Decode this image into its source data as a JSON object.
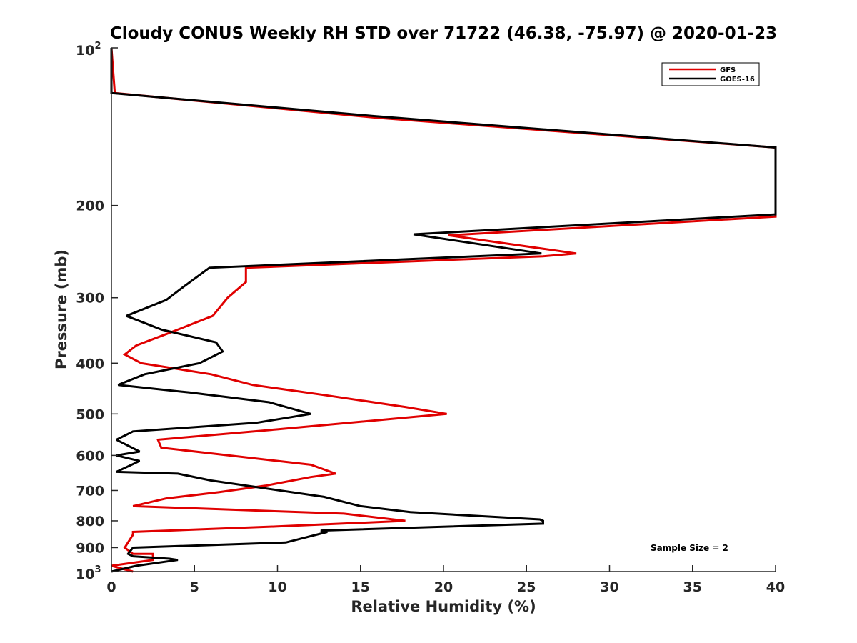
{
  "chart_data": {
    "type": "line",
    "title": "Cloudy CONUS Weekly RH STD over 71722 (46.38, -75.97) @ 2020-01-23",
    "xlabel": "Relative Humidity (%)",
    "ylabel": "Pressure (mb)",
    "xlim": [
      0,
      40
    ],
    "ylim": [
      100,
      1000
    ],
    "yscale": "log",
    "yreversed": true,
    "x_ticks": [
      0,
      5,
      10,
      15,
      20,
      25,
      30,
      35,
      40
    ],
    "x_tick_labels": [
      "0",
      "5",
      "10",
      "15",
      "20",
      "25",
      "30",
      "35",
      "40"
    ],
    "y_ticks": [
      100,
      200,
      300,
      400,
      500,
      600,
      700,
      800,
      900,
      1000
    ],
    "y_tick_labels": [
      "",
      "200",
      "300",
      "400",
      "500",
      "600",
      "700",
      "800",
      "900",
      ""
    ],
    "y_tick_base": "10",
    "y_tick_exp_top": "2",
    "y_tick_exp_bottom": "3",
    "grid": false,
    "legend_position": "top-right",
    "annotation": "Sample Size = 2",
    "series": [
      {
        "name": "GFS",
        "color": "#e00000",
        "points": [
          [
            1.3,
            1000
          ],
          [
            0.0,
            975
          ],
          [
            2.5,
            950
          ],
          [
            2.5,
            925
          ],
          [
            1.3,
            925
          ],
          [
            0.8,
            900
          ],
          [
            1.3,
            850
          ],
          [
            1.3,
            840
          ],
          [
            10.0,
            820
          ],
          [
            17.7,
            800
          ],
          [
            14.0,
            775
          ],
          [
            1.3,
            750
          ],
          [
            3.3,
            725
          ],
          [
            6.5,
            705
          ],
          [
            9.3,
            685
          ],
          [
            12.0,
            660
          ],
          [
            13.5,
            650
          ],
          [
            12.0,
            625
          ],
          [
            3.0,
            580
          ],
          [
            2.8,
            560
          ],
          [
            10.0,
            535
          ],
          [
            20.2,
            500
          ],
          [
            17.7,
            485
          ],
          [
            12.8,
            460
          ],
          [
            8.5,
            440
          ],
          [
            6.0,
            420
          ],
          [
            1.8,
            400
          ],
          [
            0.8,
            385
          ],
          [
            1.5,
            370
          ],
          [
            3.5,
            350
          ],
          [
            6.1,
            325
          ],
          [
            7.0,
            300
          ],
          [
            8.1,
            280
          ],
          [
            8.1,
            263
          ],
          [
            26.0,
            250
          ],
          [
            28.0,
            247
          ],
          [
            20.3,
            228
          ],
          [
            40.0,
            210
          ],
          [
            40.0,
            155
          ],
          [
            16.0,
            136
          ],
          [
            0.2,
            122
          ],
          [
            0.0,
            100
          ]
        ]
      },
      {
        "name": "GOES-16",
        "color": "#000000",
        "points": [
          [
            0.0,
            1000
          ],
          [
            1.5,
            975
          ],
          [
            4.0,
            950
          ],
          [
            3.5,
            945
          ],
          [
            1.3,
            935
          ],
          [
            1.0,
            925
          ],
          [
            1.3,
            900
          ],
          [
            10.5,
            880
          ],
          [
            13.0,
            840
          ],
          [
            12.6,
            835
          ],
          [
            26.0,
            810
          ],
          [
            26.0,
            800
          ],
          [
            25.8,
            795
          ],
          [
            18.0,
            770
          ],
          [
            15.0,
            750
          ],
          [
            12.8,
            720
          ],
          [
            6.0,
            670
          ],
          [
            4.0,
            650
          ],
          [
            0.3,
            645
          ],
          [
            1.7,
            615
          ],
          [
            0.3,
            600
          ],
          [
            1.7,
            590
          ],
          [
            0.3,
            560
          ],
          [
            1.3,
            540
          ],
          [
            8.7,
            520
          ],
          [
            12.0,
            500
          ],
          [
            9.5,
            475
          ],
          [
            4.7,
            455
          ],
          [
            0.4,
            440
          ],
          [
            2.0,
            420
          ],
          [
            5.3,
            400
          ],
          [
            6.7,
            380
          ],
          [
            6.3,
            365
          ],
          [
            3.0,
            345
          ],
          [
            0.9,
            325
          ],
          [
            3.3,
            303
          ],
          [
            4.4,
            285
          ],
          [
            5.9,
            263
          ],
          [
            25.9,
            247
          ],
          [
            18.2,
            227
          ],
          [
            40.0,
            208
          ],
          [
            40.0,
            155
          ],
          [
            15.8,
            135
          ],
          [
            0.0,
            122
          ],
          [
            0.0,
            100
          ]
        ]
      }
    ]
  }
}
